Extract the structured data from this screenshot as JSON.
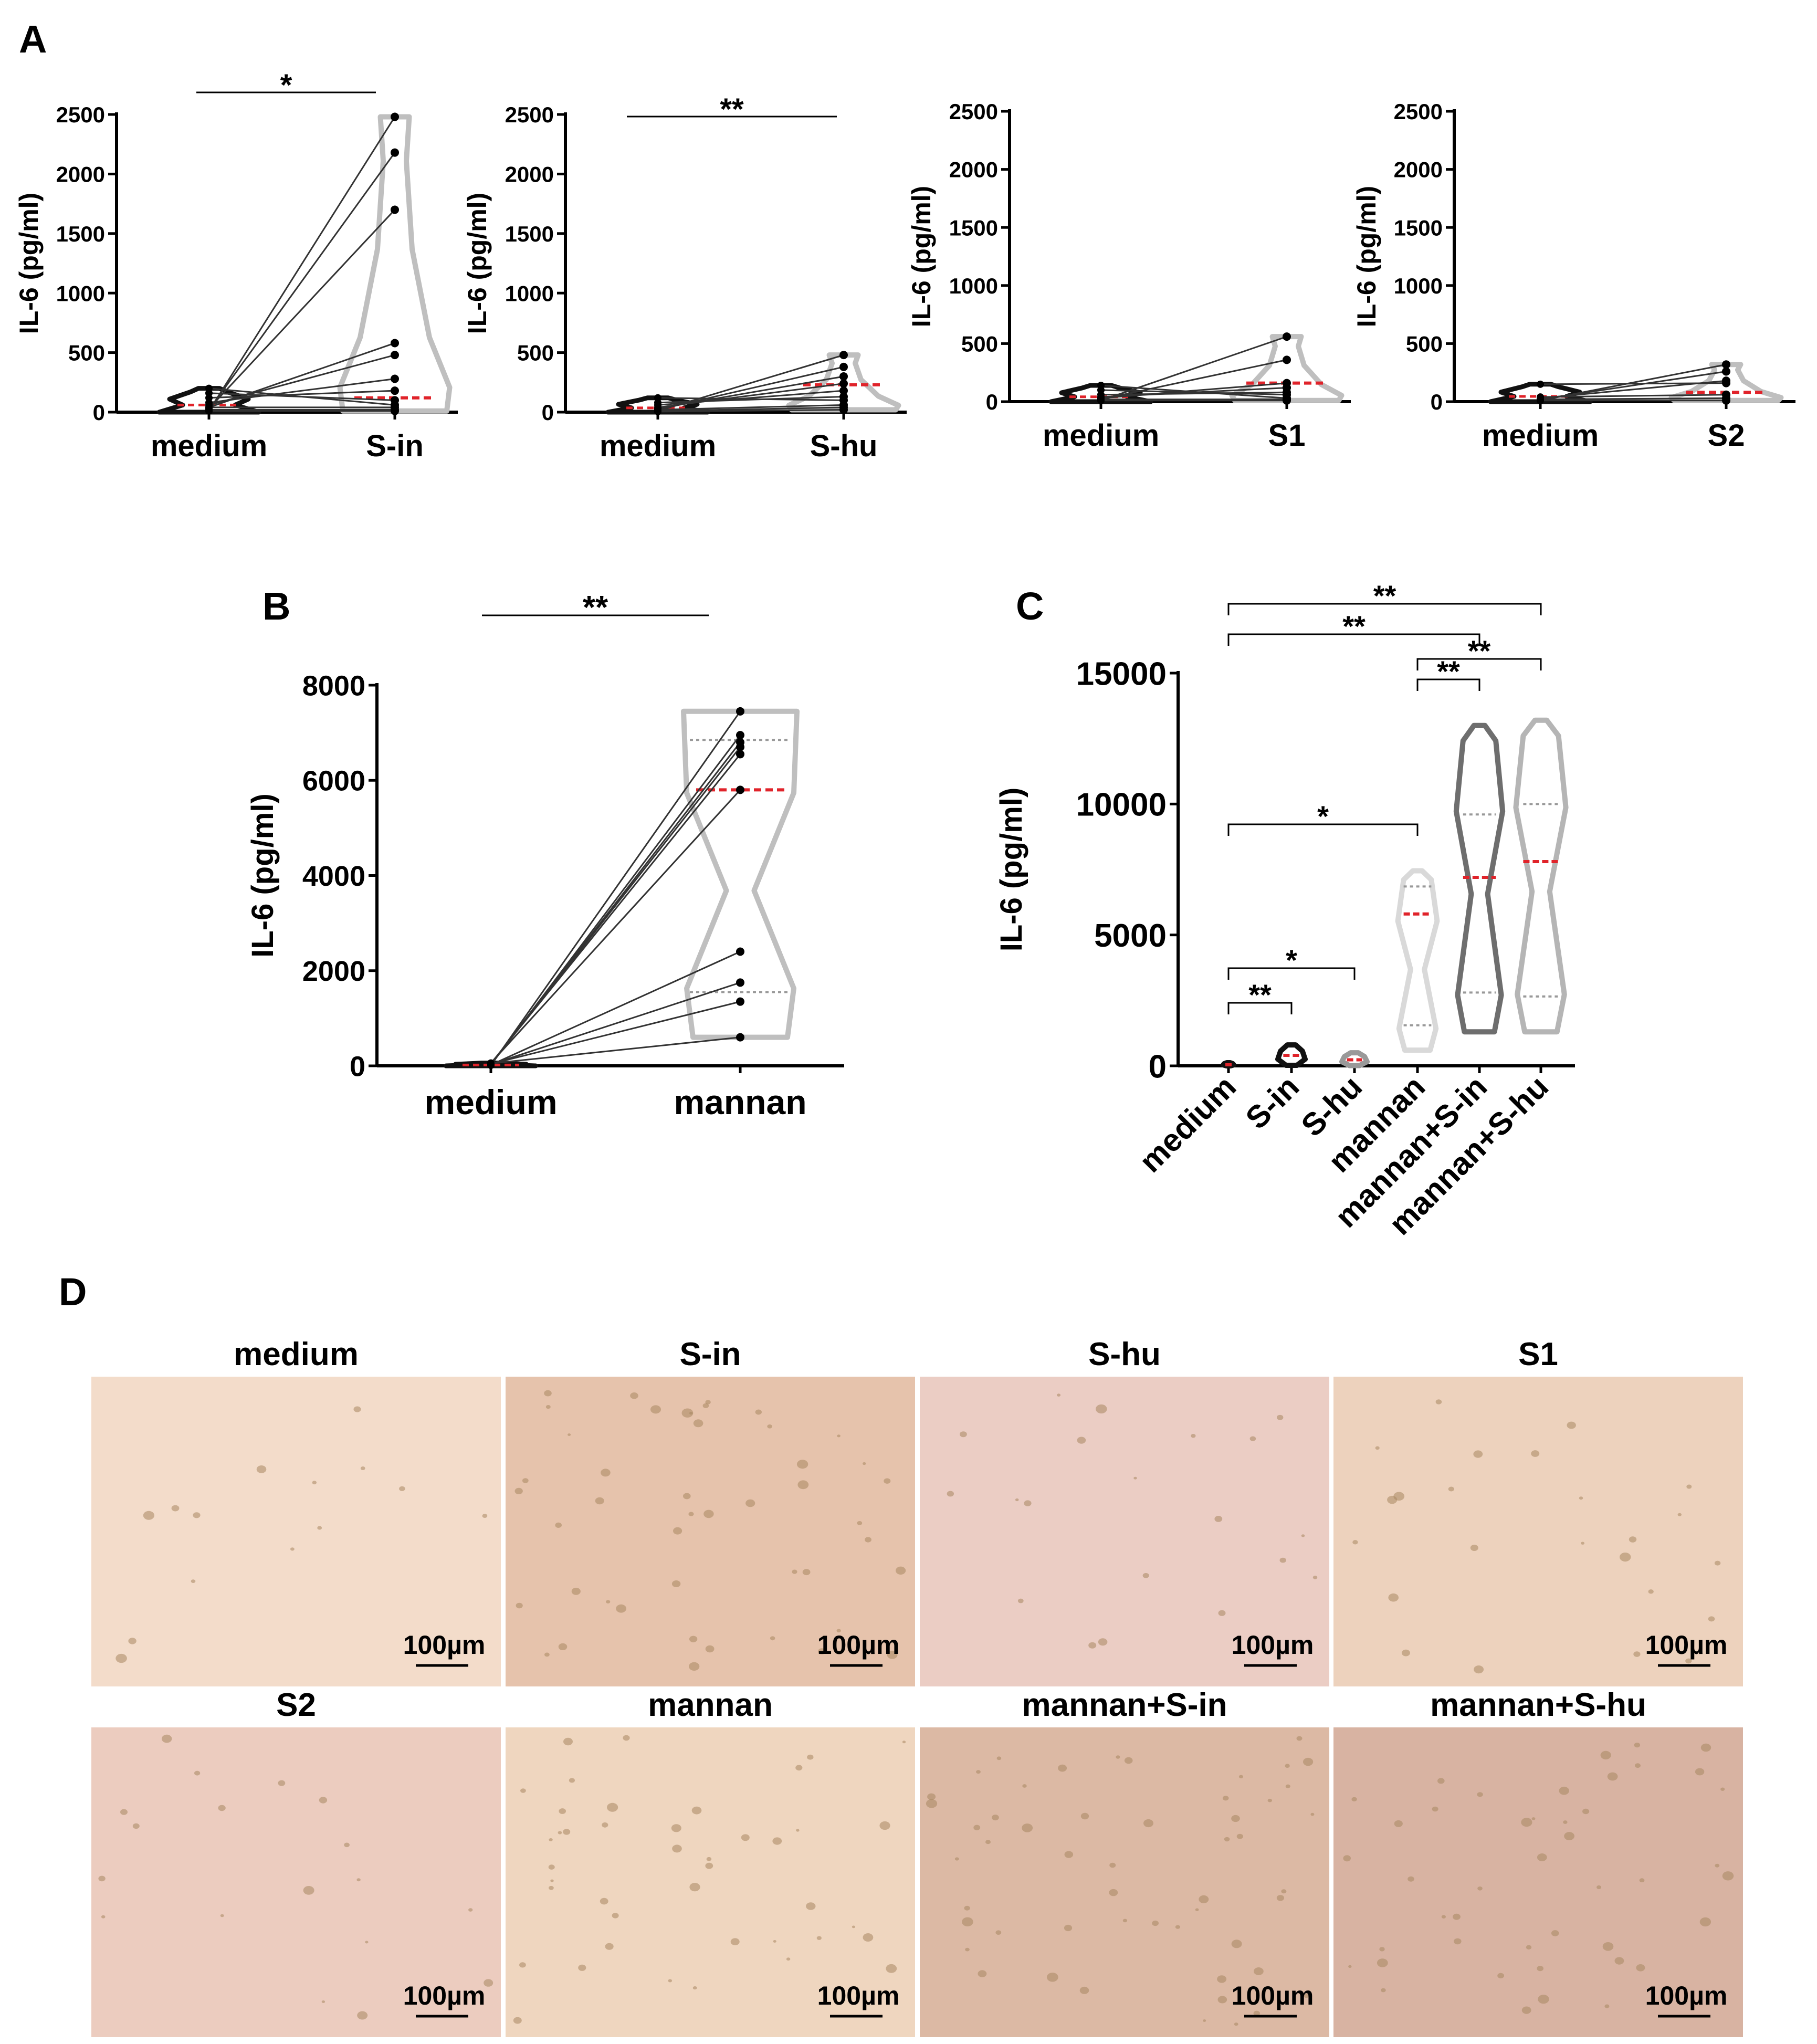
{
  "panels": {
    "A": "A",
    "B": "B",
    "C": "C",
    "D": "D"
  },
  "chart_data": [
    {
      "panel": "A",
      "type": "violin",
      "ylabel": "IL-6 (pg/ml)",
      "ylim": [
        0,
        2500
      ],
      "yticks": [
        "0",
        "500",
        "1000",
        "1500",
        "2000",
        "2500"
      ],
      "categories": [
        "medium",
        "S-in"
      ],
      "significance": [
        {
          "from": "medium",
          "to": "S-in",
          "label": "*"
        }
      ],
      "paired": [
        [
          10,
          2480
        ],
        [
          20,
          2180
        ],
        [
          30,
          1700
        ],
        [
          40,
          580
        ],
        [
          60,
          480
        ],
        [
          80,
          280
        ],
        [
          120,
          180
        ],
        [
          160,
          100
        ],
        [
          200,
          60
        ],
        [
          40,
          40
        ],
        [
          20,
          20
        ],
        [
          10,
          10
        ]
      ],
      "median_right": 120
    },
    {
      "panel": "A",
      "type": "violin",
      "ylabel": "IL-6 (pg/ml)",
      "ylim": [
        0,
        2500
      ],
      "yticks": [
        "0",
        "500",
        "1000",
        "1500",
        "2000",
        "2500"
      ],
      "categories": [
        "medium",
        "S-hu"
      ],
      "significance": [
        {
          "from": "medium",
          "to": "S-hu",
          "label": "**"
        }
      ],
      "paired": [
        [
          10,
          480
        ],
        [
          20,
          380
        ],
        [
          30,
          300
        ],
        [
          40,
          240
        ],
        [
          60,
          180
        ],
        [
          80,
          130
        ],
        [
          120,
          100
        ],
        [
          20,
          60
        ],
        [
          10,
          40
        ],
        [
          5,
          20
        ]
      ],
      "median_right": 230
    },
    {
      "panel": "A",
      "type": "violin",
      "ylabel": "IL-6 (pg/ml)",
      "ylim": [
        0,
        2500
      ],
      "yticks": [
        "0",
        "500",
        "1000",
        "1500",
        "2000",
        "2500"
      ],
      "categories": [
        "medium",
        "S1"
      ],
      "significance": [],
      "paired": [
        [
          10,
          560
        ],
        [
          20,
          360
        ],
        [
          30,
          160
        ],
        [
          40,
          120
        ],
        [
          60,
          80
        ],
        [
          100,
          60
        ],
        [
          140,
          30
        ],
        [
          20,
          20
        ],
        [
          10,
          10
        ]
      ],
      "median_right": 160
    },
    {
      "panel": "A",
      "type": "violin",
      "ylabel": "IL-6 (pg/ml)",
      "ylim": [
        0,
        2500
      ],
      "yticks": [
        "0",
        "500",
        "1000",
        "1500",
        "2000",
        "2500"
      ],
      "categories": [
        "medium",
        "S2"
      ],
      "significance": [],
      "paired": [
        [
          10,
          320
        ],
        [
          20,
          260
        ],
        [
          30,
          180
        ],
        [
          150,
          160
        ],
        [
          40,
          60
        ],
        [
          20,
          30
        ],
        [
          10,
          10
        ]
      ],
      "median_right": 80
    },
    {
      "panel": "B",
      "type": "violin",
      "ylabel": "IL-6 (pg/ml)",
      "ylim": [
        0,
        8000
      ],
      "yticks": [
        "0",
        "2000",
        "4000",
        "6000",
        "8000"
      ],
      "categories": [
        "medium",
        "mannan"
      ],
      "significance": [
        {
          "from": "medium",
          "to": "mannan",
          "label": "**"
        }
      ],
      "paired": [
        [
          10,
          7450
        ],
        [
          20,
          6950
        ],
        [
          30,
          6800
        ],
        [
          40,
          6700
        ],
        [
          50,
          6550
        ],
        [
          60,
          5800
        ],
        [
          20,
          2400
        ],
        [
          30,
          1750
        ],
        [
          40,
          1350
        ],
        [
          50,
          600
        ]
      ],
      "median_right": 5800,
      "quartiles_right": [
        1550,
        6850
      ]
    },
    {
      "panel": "C",
      "type": "violin",
      "ylabel": "IL-6 (pg/ml)",
      "ylim": [
        0,
        15000
      ],
      "yticks": [
        "0",
        "5000",
        "10000",
        "15000"
      ],
      "categories": [
        "medium",
        "S-in",
        "S-hu",
        "mannan",
        "mannan+S-in",
        "mannan+S-hu"
      ],
      "groups": [
        {
          "min": 0,
          "max": 120,
          "median": 40
        },
        {
          "min": 20,
          "max": 800,
          "median": 400
        },
        {
          "min": 10,
          "max": 500,
          "median": 230
        },
        {
          "min": 600,
          "max": 7450,
          "median": 5800,
          "q1": 1550,
          "q3": 6850
        },
        {
          "min": 1300,
          "max": 13000,
          "median": 7200,
          "q1": 2800,
          "q3": 9600
        },
        {
          "min": 1300,
          "max": 13200,
          "median": 7800,
          "q1": 2650,
          "q3": 10000
        }
      ],
      "significance": [
        {
          "from": "medium",
          "to": "mannan+S-hu",
          "label": "**"
        },
        {
          "from": "medium",
          "to": "mannan+S-in",
          "label": "**"
        },
        {
          "from": "mannan",
          "to": "mannan+S-hu",
          "label": "**"
        },
        {
          "from": "mannan",
          "to": "mannan+S-in",
          "label": "**"
        },
        {
          "from": "medium",
          "to": "mannan",
          "label": "*"
        },
        {
          "from": "medium",
          "to": "S-hu",
          "label": "*"
        },
        {
          "from": "medium",
          "to": "S-in",
          "label": "**"
        }
      ]
    }
  ],
  "micrographs": {
    "scale_label": "100µm",
    "items": [
      {
        "label": "medium",
        "tone": "#f3dcca",
        "spots": 14
      },
      {
        "label": "S-in",
        "tone": "#e6c3ac",
        "spots": 46
      },
      {
        "label": "S-hu",
        "tone": "#ebcdc4",
        "spots": 20
      },
      {
        "label": "S1",
        "tone": "#edd2bd",
        "spots": 24
      },
      {
        "label": "S2",
        "tone": "#ecccbf",
        "spots": 18
      },
      {
        "label": "mannan",
        "tone": "#efd6bf",
        "spots": 42
      },
      {
        "label": "mannan+S-in",
        "tone": "#dcb9a4",
        "spots": 52
      },
      {
        "label": "mannan+S-hu",
        "tone": "#d8b3a2",
        "spots": 44
      }
    ]
  },
  "colors": {
    "medium": "#111111",
    "right_light": "#bfbfbf",
    "median": "#e0232a",
    "quartile": "#999999",
    "connector": "#333333",
    "mannan": "#d9d9d9",
    "mannan_s_in": "#6e6e6e",
    "mannan_s_hu": "#b5b5b5"
  }
}
